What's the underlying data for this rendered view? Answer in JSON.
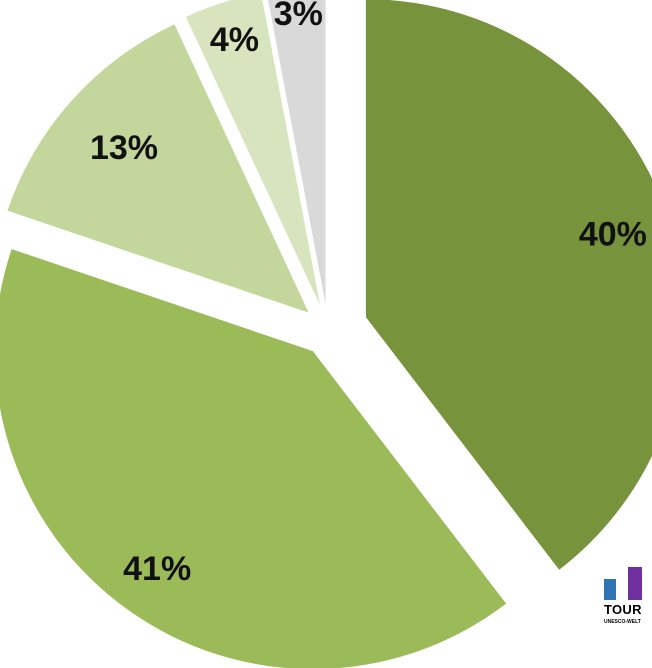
{
  "chart_data": {
    "type": "pie",
    "exploded": true,
    "start": "12 o'clock",
    "direction": "clockwise",
    "values": [
      40,
      41,
      13,
      4,
      3
    ],
    "labels": [
      "40%",
      "41%",
      "13%",
      "4%",
      "3%"
    ],
    "colors": [
      "#77933c",
      "#9bbb59",
      "#c3d69b",
      "#d7e4bd",
      "#d9d9d9"
    ],
    "title": "",
    "legend": "none"
  },
  "logo": {
    "text": "TOUR",
    "subtext": "UNESCO-WELT",
    "colors": [
      "#2e74b5",
      "#7030a0"
    ]
  }
}
